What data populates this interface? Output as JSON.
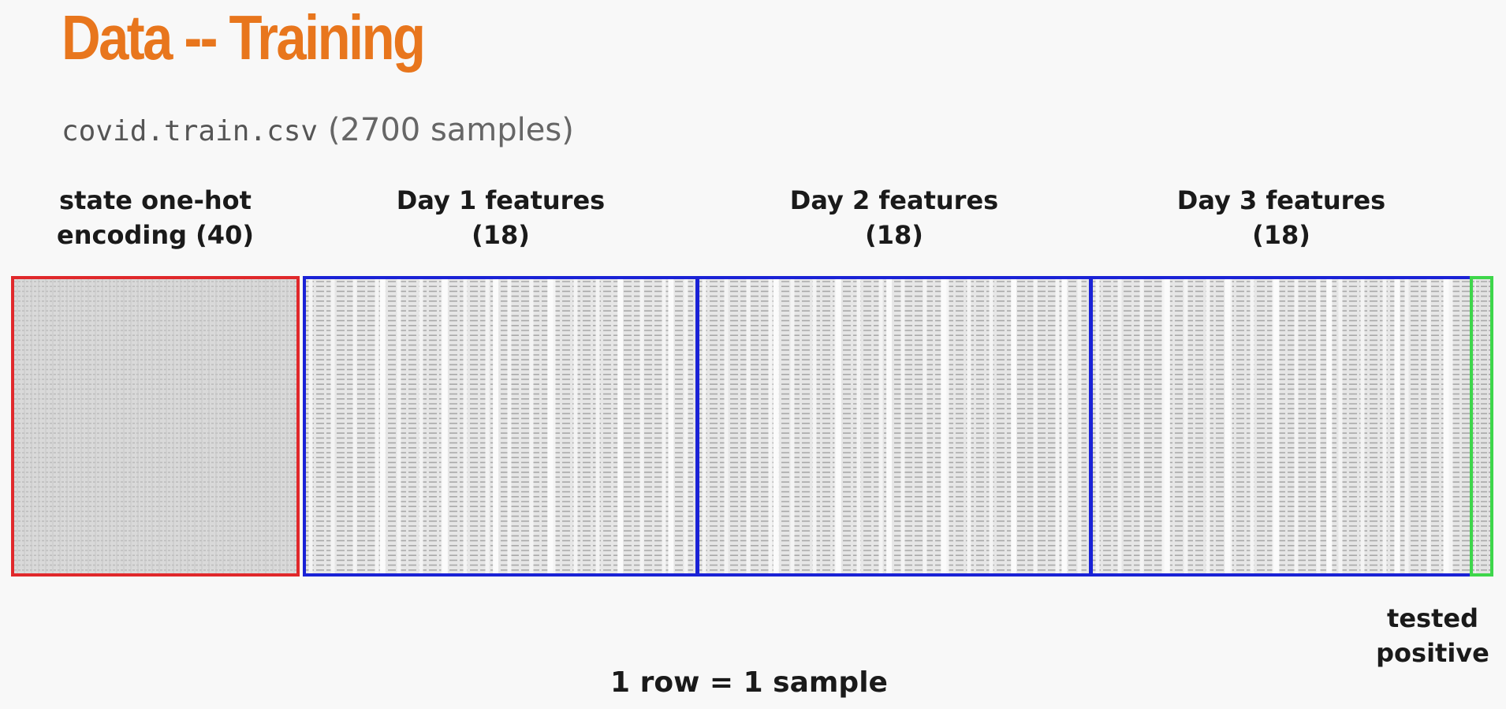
{
  "slide": {
    "title": "Data -- Training",
    "file_name": "covid.train.csv",
    "sample_count": "(2700 samples)"
  },
  "columns": [
    {
      "line1": "state one-hot",
      "line2": "encoding (40)",
      "border_color": "#e0282b"
    },
    {
      "line1": "Day 1 features",
      "line2": "(18)",
      "border_color": "#1a22d6"
    },
    {
      "line1": "Day 2 features",
      "line2": "(18)",
      "border_color": "#1a22d6"
    },
    {
      "line1": "Day 3 features",
      "line2": "(18)",
      "border_color": "#1a22d6"
    }
  ],
  "target": {
    "line1": "tested",
    "line2": "positive",
    "border_color": "#3ed64b"
  },
  "footer": "1 row = 1 sample",
  "colors": {
    "title": "#e8761d",
    "subtitle": "#666666",
    "text": "#1a1a1a"
  }
}
